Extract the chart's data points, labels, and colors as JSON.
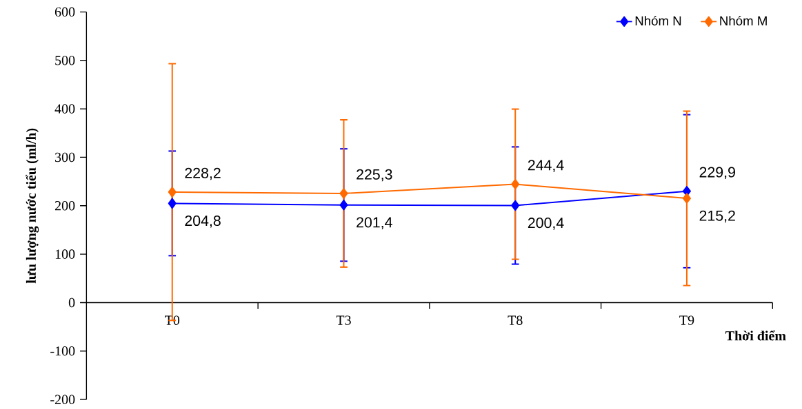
{
  "chart_data": {
    "type": "line",
    "xlabel": "Thời điểm",
    "ylabel": "lưu lượng nước tiểu (ml/h)",
    "categories": [
      "T0",
      "T3",
      "T8",
      "T9"
    ],
    "series": [
      {
        "name": "Nhóm N",
        "color": "#0000ff",
        "values": [
          204.8,
          201.4,
          200.4,
          229.9
        ],
        "errors": [
          108,
          116,
          121,
          158
        ],
        "value_labels": [
          "204,8",
          "201,4",
          "200,4",
          "229,9"
        ]
      },
      {
        "name": "Nhóm M",
        "color": "#ff6a00",
        "values": [
          228.2,
          225.3,
          244.4,
          215.2
        ],
        "errors": [
          265,
          152,
          155,
          180
        ],
        "value_labels": [
          "228,2",
          "225,3",
          "244,4",
          "215,2"
        ]
      }
    ],
    "ylim": [
      -200,
      600
    ],
    "yticks": [
      -200,
      -100,
      0,
      100,
      200,
      300,
      400,
      500,
      600
    ],
    "marker": "diamond",
    "line_style": "solid",
    "legend": "top right",
    "grid": false
  }
}
